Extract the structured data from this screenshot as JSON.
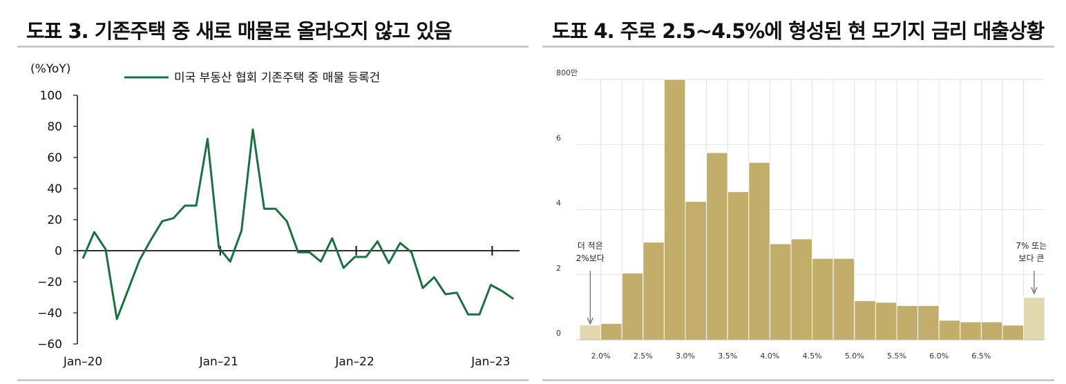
{
  "left": {
    "title": "도표 3. 기존주택 중 새로 매물로 올라오지 않고 있음",
    "chart_data": {
      "type": "line",
      "title": "도표 3. 기존주택 중 새로 매물로 올라오지 않고 있음",
      "unit_label": "(%YoY)",
      "ylim": [
        -60,
        100
      ],
      "yticks": [
        100,
        80,
        60,
        40,
        20,
        0,
        -20,
        -40,
        -60
      ],
      "xtick_labels": [
        "Jan-20",
        "Jan-21",
        "Jan-22",
        "Jan-23"
      ],
      "series": [
        {
          "name": "미국 부동산 협회 기존주택 중 매물 등록건",
          "color": "#1a7140",
          "values": [
            -5,
            12,
            1,
            -44,
            -25,
            -6,
            7,
            19,
            21,
            29,
            29,
            72,
            2,
            -7,
            13,
            78,
            27,
            27,
            19,
            -1,
            -1,
            -7,
            8,
            -11,
            -4,
            -4,
            6,
            -8,
            5,
            -1,
            -24,
            -17,
            -28,
            -27,
            -41,
            -41,
            -22,
            -26,
            -31
          ]
        }
      ]
    }
  },
  "right": {
    "title": "도표 4. 주로 2.5~4.5%에 형성된 현 모기지 금리 대출상황",
    "chart_data": {
      "type": "bar",
      "title": "도표 4. 주로 2.5~4.5%에 형성된 현 모기지 금리 대출상황",
      "ylim": [
        0,
        8
      ],
      "yticks": [
        0,
        2,
        4,
        6,
        8
      ],
      "ytick_labels": [
        "0",
        "2",
        "4",
        "6",
        "800만"
      ],
      "xtick_labels": [
        "2.0%",
        "2.5%",
        "3.0%",
        "3.5%",
        "4.0%",
        "4.5%",
        "5.0%",
        "5.5%",
        "6.0%",
        "6.5%"
      ],
      "bar_color": "#c2ae6a",
      "highlight_color": "#e3d8ad",
      "values": [
        0.45,
        0.5,
        2.05,
        3.0,
        8.0,
        4.25,
        5.75,
        4.55,
        5.45,
        2.95,
        3.1,
        2.5,
        2.5,
        1.2,
        1.15,
        1.05,
        1.05,
        0.6,
        0.55,
        0.55,
        0.45,
        1.3
      ],
      "highlight_index": [
        0,
        21
      ],
      "annotations": [
        {
          "lines": [
            "더 적은",
            "2%보다"
          ]
        },
        {
          "lines": [
            "7% 또는",
            "보다 큰"
          ]
        }
      ]
    }
  }
}
